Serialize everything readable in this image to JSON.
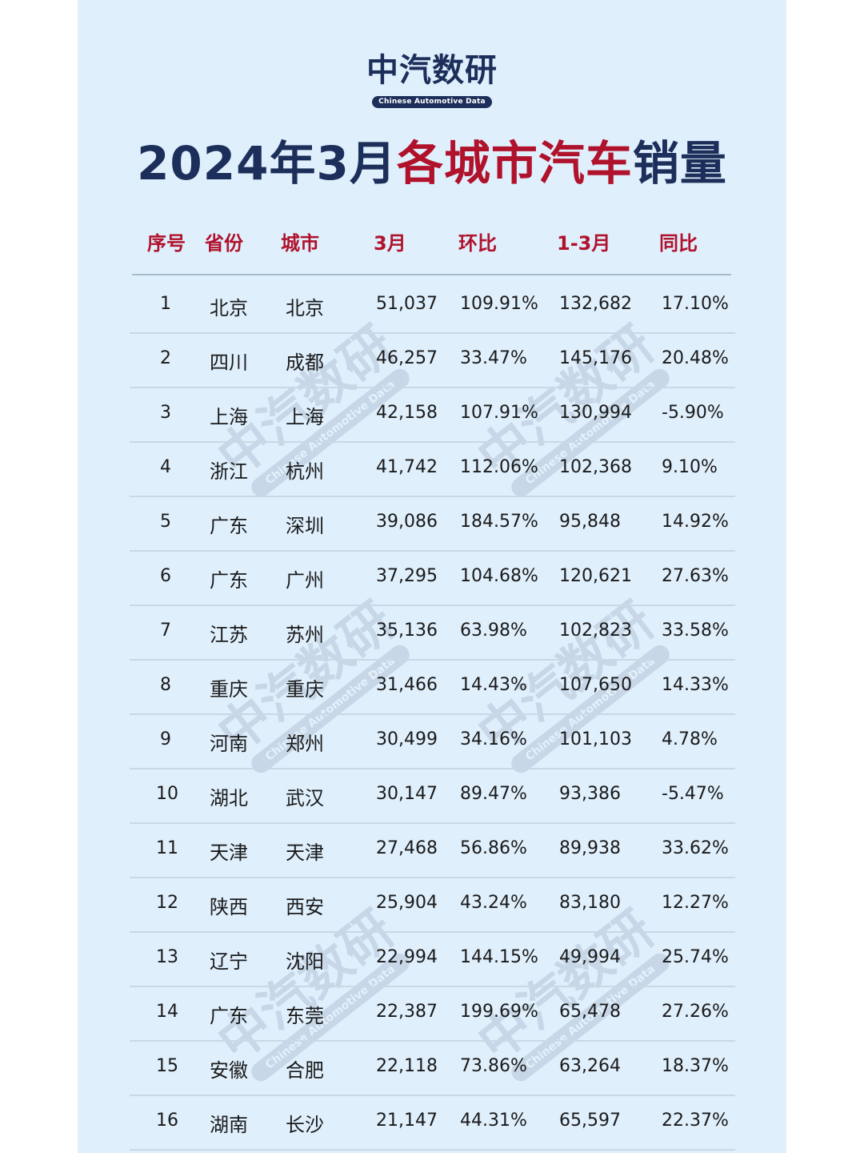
{
  "brand": {
    "name_cn": "中汽数研",
    "name_en": "Chinese Automotive Data"
  },
  "title": {
    "part1": "2024年3月",
    "part2": "各城市汽车",
    "part3": "销量"
  },
  "colors": {
    "navy": "#1c2e5a",
    "red": "#b0122c",
    "background": "#dfeffc",
    "text": "#1a1a1a"
  },
  "table": {
    "headers": [
      "序号",
      "省份",
      "城市",
      "3月",
      "环比",
      "1-3月",
      "同比"
    ],
    "rows": [
      {
        "rank": "1",
        "province": "北京",
        "city": "北京",
        "march": "51,037",
        "mom": "109.91%",
        "ytd": "132,682",
        "yoy": "17.10%"
      },
      {
        "rank": "2",
        "province": "四川",
        "city": "成都",
        "march": "46,257",
        "mom": "33.47%",
        "ytd": "145,176",
        "yoy": "20.48%"
      },
      {
        "rank": "3",
        "province": "上海",
        "city": "上海",
        "march": "42,158",
        "mom": "107.91%",
        "ytd": "130,994",
        "yoy": "-5.90%"
      },
      {
        "rank": "4",
        "province": "浙江",
        "city": "杭州",
        "march": "41,742",
        "mom": "112.06%",
        "ytd": "102,368",
        "yoy": "9.10%"
      },
      {
        "rank": "5",
        "province": "广东",
        "city": "深圳",
        "march": "39,086",
        "mom": "184.57%",
        "ytd": "95,848",
        "yoy": "14.92%"
      },
      {
        "rank": "6",
        "province": "广东",
        "city": "广州",
        "march": "37,295",
        "mom": "104.68%",
        "ytd": "120,621",
        "yoy": "27.63%"
      },
      {
        "rank": "7",
        "province": "江苏",
        "city": "苏州",
        "march": "35,136",
        "mom": "63.98%",
        "ytd": "102,823",
        "yoy": "33.58%"
      },
      {
        "rank": "8",
        "province": "重庆",
        "city": "重庆",
        "march": "31,466",
        "mom": "14.43%",
        "ytd": "107,650",
        "yoy": "14.33%"
      },
      {
        "rank": "9",
        "province": "河南",
        "city": "郑州",
        "march": "30,499",
        "mom": "34.16%",
        "ytd": "101,103",
        "yoy": "4.78%"
      },
      {
        "rank": "10",
        "province": "湖北",
        "city": "武汉",
        "march": "30,147",
        "mom": "89.47%",
        "ytd": "93,386",
        "yoy": "-5.47%"
      },
      {
        "rank": "11",
        "province": "天津",
        "city": "天津",
        "march": "27,468",
        "mom": "56.86%",
        "ytd": "89,938",
        "yoy": "33.62%"
      },
      {
        "rank": "12",
        "province": "陕西",
        "city": "西安",
        "march": "25,904",
        "mom": "43.24%",
        "ytd": "83,180",
        "yoy": "12.27%"
      },
      {
        "rank": "13",
        "province": "辽宁",
        "city": "沈阳",
        "march": "22,994",
        "mom": "144.15%",
        "ytd": "49,994",
        "yoy": "25.74%"
      },
      {
        "rank": "14",
        "province": "广东",
        "city": "东莞",
        "march": "22,387",
        "mom": "199.69%",
        "ytd": "65,478",
        "yoy": "27.26%"
      },
      {
        "rank": "15",
        "province": "安徽",
        "city": "合肥",
        "march": "22,118",
        "mom": "73.86%",
        "ytd": "63,264",
        "yoy": "18.37%"
      },
      {
        "rank": "16",
        "province": "湖南",
        "city": "长沙",
        "march": "21,147",
        "mom": "44.31%",
        "ytd": "65,597",
        "yoy": "22.37%"
      }
    ]
  },
  "watermark": {
    "text_cn": "中汽数研",
    "text_en": "Chinese Automotive Data"
  }
}
